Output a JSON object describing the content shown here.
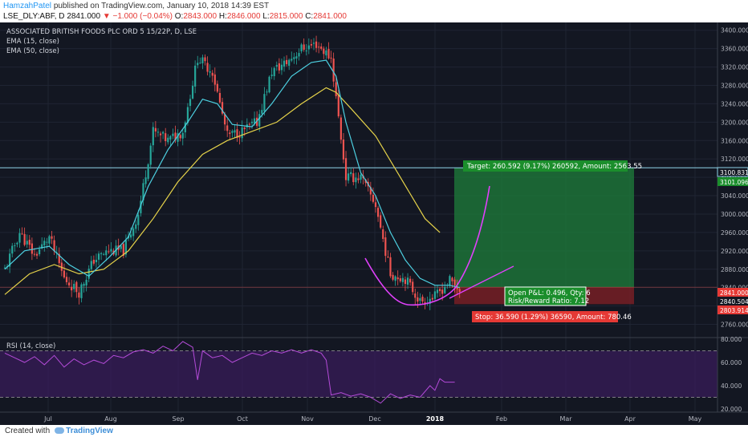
{
  "header": {
    "author": "HamzahPatel",
    "published": "published on TradingView.com, January 10, 2018 14:39 EST",
    "symbol": "LSE_DLY:ABF, D",
    "price": "2841.000",
    "change": "−1.000 (−0.04%)",
    "o_label": "O:",
    "o": "2843.000",
    "h_label": "H:",
    "h": "2846.000",
    "l_label": "L:",
    "l": "2815.000",
    "c_label": "C:",
    "c": "2841.000"
  },
  "legend": {
    "title": "ASSOCIATED BRITISH FOODS PLC ORD 5 15/22P, D, LSE",
    "ema15": "EMA (15, close)",
    "ema50": "EMA (50, close)",
    "rsi": "RSI (14, close)"
  },
  "position_tool": {
    "target": "Target: 260.592 (9.17%) 260592, Amount: 2563.55",
    "open_pl": "Open P&L: 0.496, Qty: 6",
    "risk_reward": "Risk/Reward Ratio: 7.12",
    "stop": "Stop: 36.590 (1.29%) 36590, Amount: 780.46"
  },
  "price_tags": {
    "level": "3100.831",
    "target": "3101.096",
    "current": "2841.000",
    "entry": "2840.504",
    "stop": "2803.914"
  },
  "footer": {
    "created": "Created with",
    "brand": "TradingView"
  },
  "colors": {
    "background": "#131722",
    "up": "#26a69a",
    "down": "#ef5350",
    "ema15": "#4dd0e1",
    "ema50": "#e6d34a",
    "rsi": "#b44bd8",
    "curve": "#e040fb",
    "target_zone": "#1e7a3a",
    "stop_zone": "#7a1f25"
  },
  "chart_data": {
    "type": "candlestick",
    "title": "ASSOCIATED BRITISH FOODS PLC ORD 5 15/22P, D, LSE",
    "y_ticks": [
      2760,
      2800,
      2840,
      2880,
      2920,
      2960,
      3000,
      3040,
      3080,
      3120,
      3160,
      3200,
      3240,
      3280,
      3320,
      3360,
      3400
    ],
    "ylim": [
      2740,
      3410
    ],
    "x_labels": [
      "Jul",
      "Aug",
      "Sep",
      "Oct",
      "Nov",
      "Dec",
      "2018",
      "Feb",
      "Mar",
      "Apr",
      "May"
    ],
    "rsi_ticks": [
      "80.000",
      "60.000",
      "40.000",
      "20.000"
    ],
    "rsi_ylim": [
      20,
      80
    ],
    "rsi_bands": [
      30,
      70
    ],
    "horizontal_level": 3100.831,
    "current_price": 2841.0,
    "position": {
      "entry": 2840.504,
      "target": 3101.096,
      "stop": 2803.914
    },
    "candle_anchors": [
      [
        0,
        2880
      ],
      [
        6,
        2960
      ],
      [
        12,
        2910
      ],
      [
        18,
        2950
      ],
      [
        24,
        2860
      ],
      [
        30,
        2830
      ],
      [
        36,
        2900
      ],
      [
        42,
        2920
      ],
      [
        48,
        2920
      ],
      [
        54,
        3000
      ],
      [
        60,
        3180
      ],
      [
        66,
        3160
      ],
      [
        72,
        3180
      ],
      [
        78,
        3340
      ],
      [
        84,
        3310
      ],
      [
        90,
        3170
      ],
      [
        96,
        3180
      ],
      [
        102,
        3200
      ],
      [
        108,
        3310
      ],
      [
        114,
        3330
      ],
      [
        120,
        3360
      ],
      [
        126,
        3370
      ],
      [
        132,
        3340
      ],
      [
        138,
        3080
      ],
      [
        144,
        3080
      ],
      [
        150,
        3020
      ],
      [
        156,
        2870
      ],
      [
        162,
        2860
      ],
      [
        168,
        2810
      ],
      [
        174,
        2820
      ],
      [
        180,
        2855
      ],
      [
        184,
        2835
      ]
    ],
    "ema15": [
      [
        0,
        2880
      ],
      [
        8,
        2920
      ],
      [
        18,
        2930
      ],
      [
        26,
        2890
      ],
      [
        34,
        2865
      ],
      [
        42,
        2905
      ],
      [
        50,
        2950
      ],
      [
        58,
        3060
      ],
      [
        66,
        3140
      ],
      [
        74,
        3200
      ],
      [
        80,
        3250
      ],
      [
        86,
        3240
      ],
      [
        92,
        3195
      ],
      [
        100,
        3190
      ],
      [
        108,
        3240
      ],
      [
        116,
        3300
      ],
      [
        124,
        3330
      ],
      [
        130,
        3335
      ],
      [
        134,
        3300
      ],
      [
        138,
        3200
      ],
      [
        144,
        3090
      ],
      [
        150,
        3040
      ],
      [
        156,
        2960
      ],
      [
        162,
        2900
      ],
      [
        168,
        2860
      ],
      [
        174,
        2845
      ],
      [
        180,
        2845
      ],
      [
        184,
        2840
      ]
    ],
    "ema50": [
      [
        0,
        2825
      ],
      [
        10,
        2870
      ],
      [
        20,
        2890
      ],
      [
        30,
        2870
      ],
      [
        40,
        2880
      ],
      [
        50,
        2920
      ],
      [
        60,
        2990
      ],
      [
        70,
        3070
      ],
      [
        80,
        3130
      ],
      [
        90,
        3160
      ],
      [
        100,
        3180
      ],
      [
        110,
        3200
      ],
      [
        120,
        3240
      ],
      [
        130,
        3275
      ],
      [
        134,
        3265
      ],
      [
        140,
        3230
      ],
      [
        150,
        3170
      ],
      [
        160,
        3080
      ],
      [
        170,
        2990
      ],
      [
        176,
        2960
      ]
    ],
    "rsi": [
      [
        0,
        68
      ],
      [
        4,
        64
      ],
      [
        8,
        60
      ],
      [
        12,
        65
      ],
      [
        16,
        58
      ],
      [
        20,
        66
      ],
      [
        24,
        56
      ],
      [
        28,
        63
      ],
      [
        32,
        58
      ],
      [
        36,
        62
      ],
      [
        40,
        59
      ],
      [
        44,
        66
      ],
      [
        48,
        64
      ],
      [
        52,
        69
      ],
      [
        56,
        71
      ],
      [
        60,
        68
      ],
      [
        64,
        74
      ],
      [
        68,
        70
      ],
      [
        72,
        78
      ],
      [
        76,
        73
      ],
      [
        78,
        45
      ],
      [
        80,
        70
      ],
      [
        84,
        64
      ],
      [
        88,
        66
      ],
      [
        92,
        60
      ],
      [
        96,
        64
      ],
      [
        100,
        68
      ],
      [
        104,
        66
      ],
      [
        108,
        70
      ],
      [
        112,
        68
      ],
      [
        116,
        71
      ],
      [
        120,
        68
      ],
      [
        124,
        71
      ],
      [
        128,
        68
      ],
      [
        130,
        62
      ],
      [
        132,
        32
      ],
      [
        136,
        34
      ],
      [
        140,
        31
      ],
      [
        144,
        33
      ],
      [
        148,
        30
      ],
      [
        152,
        25
      ],
      [
        156,
        33
      ],
      [
        160,
        29
      ],
      [
        164,
        32
      ],
      [
        168,
        30
      ],
      [
        172,
        40
      ],
      [
        174,
        36
      ],
      [
        176,
        46
      ],
      [
        178,
        43
      ],
      [
        182,
        43
      ]
    ]
  }
}
